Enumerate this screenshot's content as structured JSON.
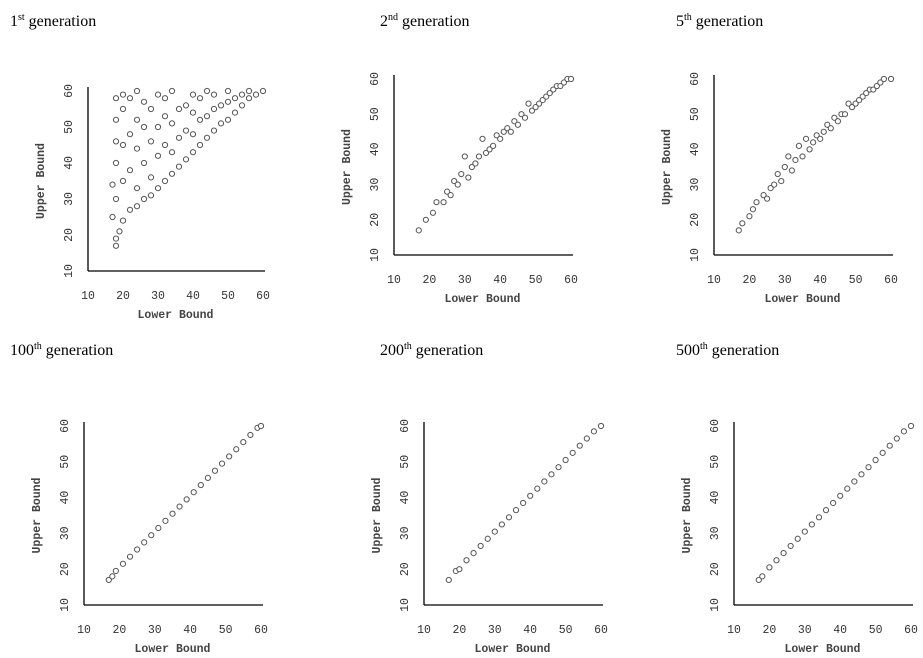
{
  "panels": [
    {
      "number": "1",
      "suffix": "st",
      "word": "generation"
    },
    {
      "number": "2",
      "suffix": "nd",
      "word": "generation"
    },
    {
      "number": "5",
      "suffix": "th",
      "word": "generation"
    },
    {
      "number": "100",
      "suffix": "th",
      "word": "generation"
    },
    {
      "number": "200",
      "suffix": "th",
      "word": "generation"
    },
    {
      "number": "500",
      "suffix": "th",
      "word": "generation"
    }
  ],
  "chart_data": [
    {
      "type": "scatter",
      "title": "1st generation",
      "xlabel": "Lower Bound",
      "ylabel": "Upper Bound",
      "xlim": [
        10,
        60
      ],
      "ylim": [
        10,
        60
      ],
      "xticks": [
        10,
        20,
        30,
        40,
        50,
        60
      ],
      "yticks": [
        10,
        20,
        30,
        40,
        50,
        60
      ],
      "points": [
        [
          18,
          17
        ],
        [
          18,
          19
        ],
        [
          19,
          21
        ],
        [
          17,
          25
        ],
        [
          18,
          30
        ],
        [
          17,
          34
        ],
        [
          18,
          40
        ],
        [
          18,
          46
        ],
        [
          18,
          52
        ],
        [
          18,
          58
        ],
        [
          20,
          24
        ],
        [
          20,
          35
        ],
        [
          20,
          45
        ],
        [
          20,
          55
        ],
        [
          20,
          59
        ],
        [
          22,
          27
        ],
        [
          22,
          38
        ],
        [
          22,
          48
        ],
        [
          22,
          58
        ],
        [
          24,
          28
        ],
        [
          24,
          33
        ],
        [
          24,
          44
        ],
        [
          24,
          52
        ],
        [
          24,
          60
        ],
        [
          26,
          30
        ],
        [
          26,
          40
        ],
        [
          26,
          50
        ],
        [
          26,
          57
        ],
        [
          28,
          31
        ],
        [
          28,
          36
        ],
        [
          28,
          46
        ],
        [
          28,
          55
        ],
        [
          30,
          33
        ],
        [
          30,
          42
        ],
        [
          30,
          50
        ],
        [
          30,
          59
        ],
        [
          32,
          35
        ],
        [
          32,
          45
        ],
        [
          32,
          53
        ],
        [
          32,
          58
        ],
        [
          34,
          37
        ],
        [
          34,
          43
        ],
        [
          34,
          51
        ],
        [
          34,
          60
        ],
        [
          36,
          39
        ],
        [
          36,
          47
        ],
        [
          36,
          55
        ],
        [
          38,
          41
        ],
        [
          38,
          49
        ],
        [
          38,
          56
        ],
        [
          40,
          43
        ],
        [
          40,
          48
        ],
        [
          40,
          54
        ],
        [
          40,
          59
        ],
        [
          42,
          45
        ],
        [
          42,
          52
        ],
        [
          42,
          58
        ],
        [
          44,
          47
        ],
        [
          44,
          53
        ],
        [
          44,
          60
        ],
        [
          46,
          49
        ],
        [
          46,
          55
        ],
        [
          46,
          59
        ],
        [
          48,
          51
        ],
        [
          48,
          56
        ],
        [
          50,
          52
        ],
        [
          50,
          57
        ],
        [
          50,
          60
        ],
        [
          52,
          54
        ],
        [
          52,
          58
        ],
        [
          54,
          56
        ],
        [
          54,
          59
        ],
        [
          56,
          58
        ],
        [
          56,
          60
        ],
        [
          58,
          59
        ],
        [
          60,
          60
        ]
      ]
    },
    {
      "type": "scatter",
      "title": "2nd generation",
      "xlabel": "Lower Bound",
      "ylabel": "Upper Bound",
      "xlim": [
        10,
        60
      ],
      "ylim": [
        10,
        60
      ],
      "xticks": [
        10,
        20,
        30,
        40,
        50,
        60
      ],
      "yticks": [
        10,
        20,
        30,
        40,
        50,
        60
      ],
      "points": [
        [
          17,
          17
        ],
        [
          19,
          20
        ],
        [
          21,
          22
        ],
        [
          22,
          25
        ],
        [
          24,
          25
        ],
        [
          25,
          28
        ],
        [
          26,
          27
        ],
        [
          27,
          31
        ],
        [
          28,
          30
        ],
        [
          29,
          33
        ],
        [
          30,
          38
        ],
        [
          31,
          32
        ],
        [
          32,
          35
        ],
        [
          33,
          36
        ],
        [
          34,
          38
        ],
        [
          35,
          43
        ],
        [
          36,
          39
        ],
        [
          37,
          40
        ],
        [
          38,
          41
        ],
        [
          39,
          44
        ],
        [
          40,
          43
        ],
        [
          41,
          45
        ],
        [
          42,
          46
        ],
        [
          43,
          45
        ],
        [
          44,
          48
        ],
        [
          45,
          47
        ],
        [
          46,
          50
        ],
        [
          47,
          49
        ],
        [
          48,
          53
        ],
        [
          49,
          51
        ],
        [
          50,
          52
        ],
        [
          51,
          53
        ],
        [
          52,
          54
        ],
        [
          53,
          55
        ],
        [
          54,
          56
        ],
        [
          55,
          57
        ],
        [
          56,
          58
        ],
        [
          57,
          58
        ],
        [
          58,
          59
        ],
        [
          59,
          60
        ],
        [
          60,
          60
        ]
      ]
    },
    {
      "type": "scatter",
      "title": "5th generation",
      "xlabel": "Lower Bound",
      "ylabel": "Upper Bound",
      "xlim": [
        10,
        60
      ],
      "ylim": [
        10,
        60
      ],
      "xticks": [
        10,
        20,
        30,
        40,
        50,
        60
      ],
      "yticks": [
        10,
        20,
        30,
        40,
        50,
        60
      ],
      "points": [
        [
          17,
          17
        ],
        [
          18,
          19
        ],
        [
          20,
          21
        ],
        [
          21,
          23
        ],
        [
          22,
          25
        ],
        [
          24,
          27
        ],
        [
          25,
          26
        ],
        [
          26,
          29
        ],
        [
          27,
          30
        ],
        [
          28,
          33
        ],
        [
          29,
          31
        ],
        [
          30,
          35
        ],
        [
          31,
          38
        ],
        [
          32,
          34
        ],
        [
          33,
          37
        ],
        [
          34,
          41
        ],
        [
          35,
          38
        ],
        [
          36,
          43
        ],
        [
          37,
          40
        ],
        [
          38,
          42
        ],
        [
          39,
          44
        ],
        [
          40,
          43
        ],
        [
          41,
          45
        ],
        [
          42,
          47
        ],
        [
          43,
          46
        ],
        [
          44,
          49
        ],
        [
          45,
          48
        ],
        [
          46,
          50
        ],
        [
          47,
          50
        ],
        [
          48,
          53
        ],
        [
          49,
          52
        ],
        [
          50,
          53
        ],
        [
          51,
          54
        ],
        [
          52,
          55
        ],
        [
          53,
          56
        ],
        [
          54,
          57
        ],
        [
          55,
          57
        ],
        [
          56,
          58
        ],
        [
          57,
          59
        ],
        [
          58,
          60
        ],
        [
          60,
          60
        ]
      ]
    },
    {
      "type": "scatter",
      "title": "100th generation",
      "xlabel": "Lower Bound",
      "ylabel": "Upper Bound",
      "xlim": [
        10,
        60
      ],
      "ylim": [
        10,
        60
      ],
      "xticks": [
        10,
        20,
        30,
        40,
        50,
        60
      ],
      "yticks": [
        10,
        20,
        30,
        40,
        50,
        60
      ],
      "points": [
        [
          17,
          17
        ],
        [
          18,
          18
        ],
        [
          19,
          19.5
        ],
        [
          21,
          21.5
        ],
        [
          23,
          23.5
        ],
        [
          25,
          25.5
        ],
        [
          27,
          27.5
        ],
        [
          29,
          29.5
        ],
        [
          31,
          31.5
        ],
        [
          33,
          33.5
        ],
        [
          35,
          35.5
        ],
        [
          37,
          37.5
        ],
        [
          39,
          39.5
        ],
        [
          41,
          41.5
        ],
        [
          43,
          43.5
        ],
        [
          45,
          45.5
        ],
        [
          47,
          47.5
        ],
        [
          49,
          49.5
        ],
        [
          51,
          51.5
        ],
        [
          53,
          53.5
        ],
        [
          55,
          55.5
        ],
        [
          57,
          57.5
        ],
        [
          59,
          59.5
        ],
        [
          60,
          60
        ]
      ]
    },
    {
      "type": "scatter",
      "title": "200th generation",
      "xlabel": "Lower Bound",
      "ylabel": "Upper Bound",
      "xlim": [
        10,
        60
      ],
      "ylim": [
        10,
        60
      ],
      "xticks": [
        10,
        20,
        30,
        40,
        50,
        60
      ],
      "yticks": [
        10,
        20,
        30,
        40,
        50,
        60
      ],
      "points": [
        [
          17,
          17
        ],
        [
          19,
          19.5
        ],
        [
          20,
          20
        ],
        [
          22,
          22.5
        ],
        [
          24,
          24.5
        ],
        [
          26,
          26.5
        ],
        [
          28,
          28.5
        ],
        [
          30,
          30.5
        ],
        [
          32,
          32.5
        ],
        [
          34,
          34.5
        ],
        [
          36,
          36.5
        ],
        [
          38,
          38.5
        ],
        [
          40,
          40.5
        ],
        [
          42,
          42.5
        ],
        [
          44,
          44.5
        ],
        [
          46,
          46.5
        ],
        [
          48,
          48.5
        ],
        [
          50,
          50.5
        ],
        [
          52,
          52.5
        ],
        [
          54,
          54.5
        ],
        [
          56,
          56.5
        ],
        [
          58,
          58.5
        ],
        [
          60,
          60
        ]
      ]
    },
    {
      "type": "scatter",
      "title": "500th generation",
      "xlabel": "Lower Bound",
      "ylabel": "Upper Bound",
      "xlim": [
        10,
        60
      ],
      "ylim": [
        10,
        60
      ],
      "xticks": [
        10,
        20,
        30,
        40,
        50,
        60
      ],
      "yticks": [
        10,
        20,
        30,
        40,
        50,
        60
      ],
      "points": [
        [
          17,
          17
        ],
        [
          18,
          18
        ],
        [
          20,
          20.5
        ],
        [
          22,
          22.5
        ],
        [
          24,
          24.5
        ],
        [
          26,
          26.5
        ],
        [
          28,
          28.5
        ],
        [
          30,
          30.5
        ],
        [
          32,
          32.5
        ],
        [
          34,
          34.5
        ],
        [
          36,
          36.5
        ],
        [
          38,
          38.5
        ],
        [
          40,
          40.5
        ],
        [
          42,
          42.5
        ],
        [
          44,
          44.5
        ],
        [
          46,
          46.5
        ],
        [
          48,
          48.5
        ],
        [
          50,
          50.5
        ],
        [
          52,
          52.5
        ],
        [
          54,
          54.5
        ],
        [
          56,
          56.5
        ],
        [
          58,
          58.5
        ],
        [
          60,
          60
        ]
      ]
    }
  ]
}
